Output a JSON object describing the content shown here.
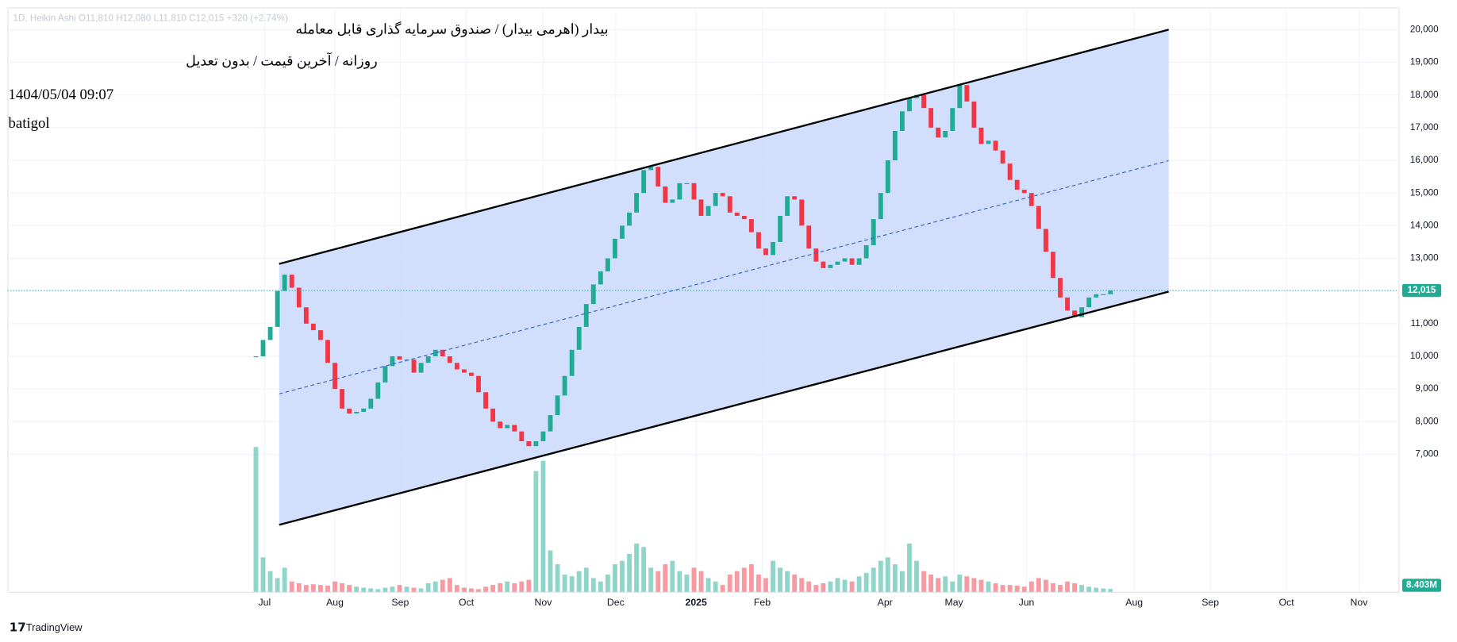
{
  "chart_data": {
    "type": "candlestick",
    "legend_text": "1D, Heikin Ashi  O11,810  H12,080  L11,810  C12,015  +320 (+2.74%)",
    "title": "بیدار (اهرمی بیدار) / صندوق سرمایه گذاری قابل معامله",
    "subtitle": "روزانه / آخرین قیمت / بدون تعدیل",
    "timestamp": "1404/05/04 09:07",
    "author": "batigol",
    "brand": "TradingView",
    "up_color": "#22ab94",
    "down_color": "#f23645",
    "close": [
      10000,
      10500,
      10900,
      12000,
      12500,
      12100,
      11500,
      11000,
      10800,
      10500,
      9800,
      9000,
      8400,
      8250,
      8300,
      8400,
      8700,
      9200,
      9700,
      10000,
      9900,
      9900,
      9500,
      9800,
      10000,
      10200,
      10000,
      9800,
      9600,
      9500,
      9400,
      8900,
      8400,
      8000,
      7800,
      7900,
      7700,
      7400,
      7250,
      7400,
      7700,
      8200,
      8800,
      9400,
      10200,
      10900,
      11600,
      12200,
      12600,
      13000,
      13600,
      14000,
      14400,
      15000,
      15700,
      15800,
      15200,
      14700,
      14800,
      15300,
      15300,
      14800,
      14300,
      14600,
      15000,
      14900,
      14400,
      14300,
      14200,
      13800,
      13300,
      13100,
      13500,
      14300,
      14900,
      14800,
      14000,
      13300,
      12900,
      12700,
      12800,
      12900,
      13000,
      12800,
      13000,
      13400,
      14200,
      15000,
      16000,
      16900,
      17500,
      17900,
      18000,
      17600,
      17000,
      16700,
      16900,
      17600,
      18300,
      17800,
      17000,
      16500,
      16600,
      16300,
      15900,
      15400,
      15100,
      15000,
      14600,
      13900,
      13200,
      12400,
      11800,
      11400,
      11200,
      11500,
      11800,
      11900,
      11900,
      12015
    ],
    "volume": {
      "values": [
        420,
        100,
        60,
        40,
        70,
        30,
        25,
        20,
        22,
        20,
        18,
        30,
        25,
        20,
        15,
        12,
        10,
        8,
        12,
        15,
        20,
        15,
        12,
        10,
        25,
        30,
        35,
        40,
        20,
        12,
        10,
        8,
        15,
        20,
        25,
        30,
        25,
        30,
        35,
        350,
        380,
        120,
        80,
        50,
        45,
        60,
        70,
        40,
        30,
        50,
        80,
        90,
        110,
        140,
        130,
        70,
        60,
        80,
        90,
        60,
        50,
        70,
        60,
        40,
        30,
        20,
        50,
        60,
        70,
        80,
        50,
        40,
        90,
        70,
        60,
        50,
        40,
        30,
        20,
        25,
        30,
        40,
        35,
        30,
        45,
        55,
        70,
        90,
        100,
        80,
        60,
        140,
        90,
        60,
        50,
        40,
        45,
        30,
        50,
        45,
        40,
        35,
        30,
        25,
        20,
        20,
        18,
        15,
        30,
        40,
        35,
        25,
        20,
        30,
        25,
        20,
        15,
        12,
        10,
        8.403
      ],
      "ylim": [
        0,
        450
      ],
      "last_label": "8.403M"
    },
    "last_price": {
      "value": 12015,
      "label": "12,015"
    },
    "xlim": [
      -34.6,
      159.1
    ],
    "xticks": [
      {
        "value": 1.2,
        "label": "Jul"
      },
      {
        "value": 11.0,
        "label": "Aug"
      },
      {
        "value": 20.1,
        "label": "Sep"
      },
      {
        "value": 29.3,
        "label": "Oct"
      },
      {
        "value": 40.0,
        "label": "Nov"
      },
      {
        "value": 50.1,
        "label": "Dec"
      },
      {
        "value": 61.3,
        "label": "2025"
      },
      {
        "value": 70.5,
        "label": "Feb"
      },
      {
        "value": 87.6,
        "label": "Apr"
      },
      {
        "value": 97.2,
        "label": "May"
      },
      {
        "value": 107.3,
        "label": "Jun"
      },
      {
        "value": 122.3,
        "label": "Aug"
      },
      {
        "value": 132.9,
        "label": "Sep"
      },
      {
        "value": 143.5,
        "label": "Oct"
      },
      {
        "value": 153.6,
        "label": "Nov"
      }
    ],
    "ylim": [
      2790,
      20680
    ],
    "yticks": [
      {
        "value": 7000,
        "label": "7,000"
      },
      {
        "value": 8000,
        "label": "8,000"
      },
      {
        "value": 9000,
        "label": "9,000"
      },
      {
        "value": 10000,
        "label": "10,000"
      },
      {
        "value": 11000,
        "label": "11,000"
      },
      {
        "value": 12000,
        "label": "12,000"
      },
      {
        "value": 13000,
        "label": "13,000"
      },
      {
        "value": 14000,
        "label": "14,000"
      },
      {
        "value": 15000,
        "label": "15,000"
      },
      {
        "value": 16000,
        "label": "16,000"
      },
      {
        "value": 17000,
        "label": "17,000"
      },
      {
        "value": 18000,
        "label": "18,000"
      },
      {
        "value": 19000,
        "label": "19,000"
      },
      {
        "value": 20000,
        "label": "20,000"
      }
    ],
    "grid": true,
    "channel": {
      "x": [
        3.24,
        127.1
      ],
      "upper": [
        12830,
        20000
      ],
      "middle": [
        8850,
        15990
      ],
      "lower": [
        4840,
        11980
      ],
      "fill": "#c9d8fb"
    }
  }
}
